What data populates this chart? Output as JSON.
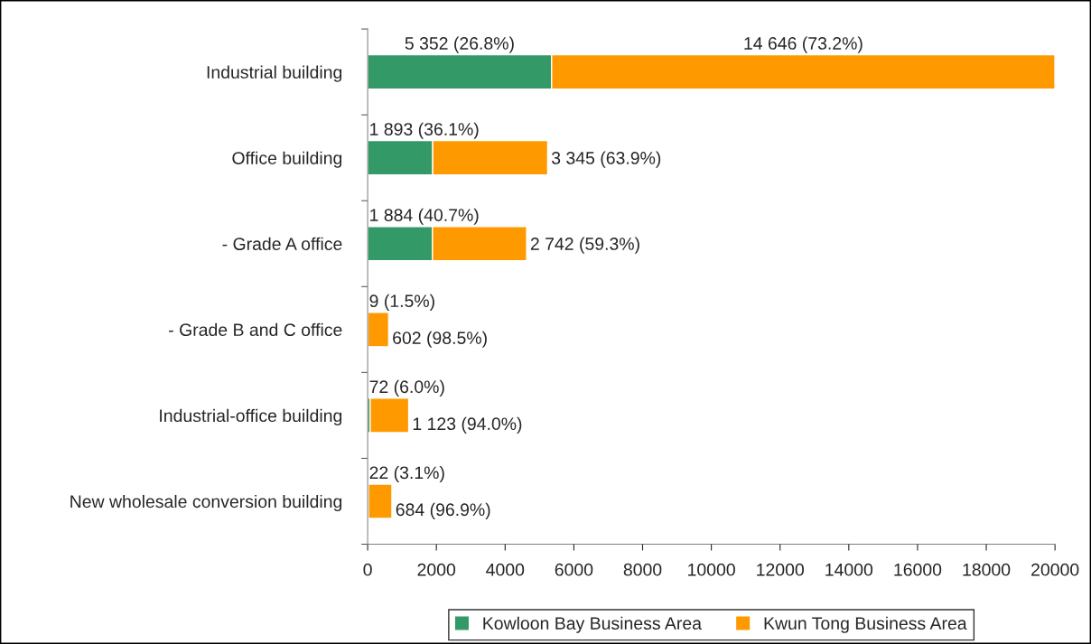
{
  "chart_data": {
    "type": "bar",
    "orientation": "horizontal",
    "stacked": true,
    "categories": [
      "Industrial building",
      "Office building",
      "- Grade A office",
      "- Grade B and C office",
      "Industrial-office building",
      "New wholesale conversion building"
    ],
    "series": [
      {
        "name": "Kowloon Bay Business Area",
        "color": "#339966",
        "values": [
          5352,
          1893,
          1884,
          9,
          72,
          22
        ],
        "value_labels": [
          "5 352 (26.8%)",
          "1 893 (36.1%)",
          "1 884 (40.7%)",
          "9 (1.5%)",
          "72 (6.0%)",
          "22 (3.1%)"
        ]
      },
      {
        "name": "Kwun Tong Business Area",
        "color": "#ff9900",
        "values": [
          14646,
          3345,
          2742,
          602,
          1123,
          684
        ],
        "value_labels": [
          "14 646 (73.2%)",
          "3 345 (63.9%)",
          "2 742 (59.3%)",
          "602 (98.5%)",
          "1 123 (94.0%)",
          "684 (96.9%)"
        ]
      }
    ],
    "xlim": [
      0,
      20000
    ],
    "xticks": [
      0,
      2000,
      4000,
      6000,
      8000,
      10000,
      12000,
      14000,
      16000,
      18000,
      20000
    ],
    "grid": false,
    "legend": "bottom"
  }
}
